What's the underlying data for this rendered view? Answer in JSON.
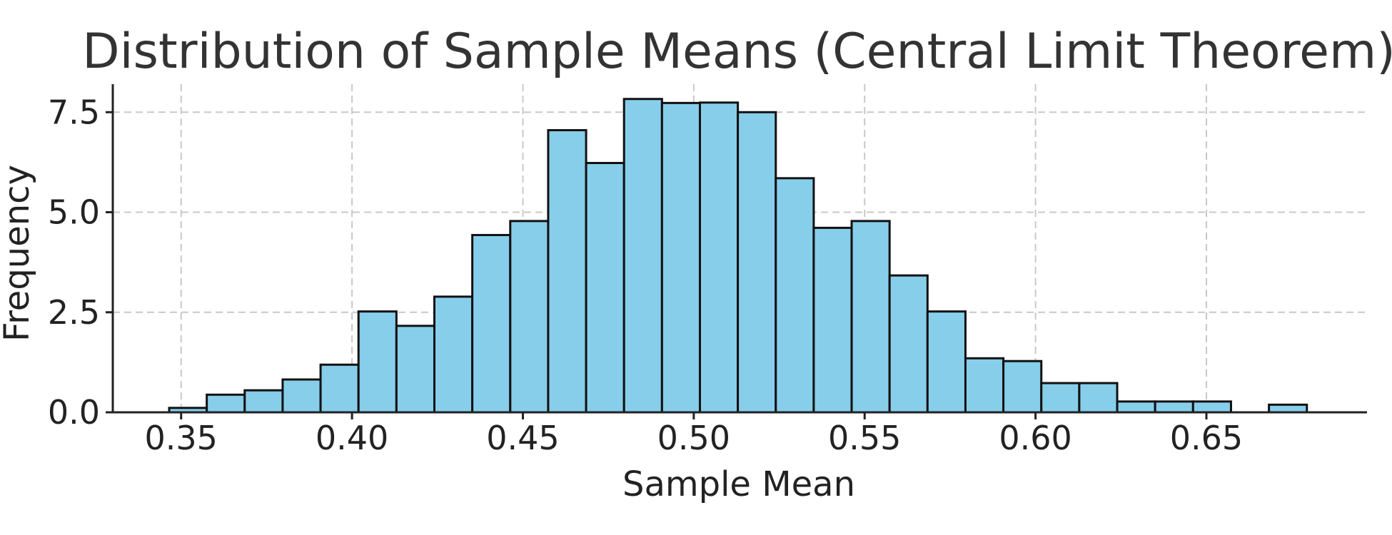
{
  "chart_data": {
    "type": "bar",
    "title": "Distribution of Sample Means (Central Limit Theorem)",
    "xlabel": "Sample Mean",
    "ylabel": "Frequency",
    "xlim": [
      0.33,
      0.697
    ],
    "ylim": [
      0,
      8.2
    ],
    "x_ticks": [
      0.35,
      0.4,
      0.45,
      0.5,
      0.55,
      0.6,
      0.65
    ],
    "x_tick_labels": [
      "0.35",
      "0.40",
      "0.45",
      "0.50",
      "0.55",
      "0.60",
      "0.65"
    ],
    "y_ticks": [
      0,
      2.5,
      5.0,
      7.5
    ],
    "y_tick_labels": [
      "0.0",
      "2.5",
      "5.0",
      "7.5"
    ],
    "grid": true,
    "bar_color": "#87ceeb",
    "edge_color": "#111111",
    "bins": [
      {
        "x0": 0.3465,
        "x1": 0.3575,
        "value": 0.11
      },
      {
        "x0": 0.3575,
        "x1": 0.3686,
        "value": 0.44
      },
      {
        "x0": 0.3686,
        "x1": 0.3797,
        "value": 0.55
      },
      {
        "x0": 0.3797,
        "x1": 0.3908,
        "value": 0.82
      },
      {
        "x0": 0.3908,
        "x1": 0.4019,
        "value": 1.19
      },
      {
        "x0": 0.4019,
        "x1": 0.413,
        "value": 2.52
      },
      {
        "x0": 0.413,
        "x1": 0.4241,
        "value": 2.16
      },
      {
        "x0": 0.4241,
        "x1": 0.4352,
        "value": 2.89
      },
      {
        "x0": 0.4352,
        "x1": 0.4463,
        "value": 4.43
      },
      {
        "x0": 0.4463,
        "x1": 0.4574,
        "value": 4.78
      },
      {
        "x0": 0.4574,
        "x1": 0.4685,
        "value": 7.05
      },
      {
        "x0": 0.4685,
        "x1": 0.4796,
        "value": 6.23
      },
      {
        "x0": 0.4796,
        "x1": 0.4907,
        "value": 7.83
      },
      {
        "x0": 0.4907,
        "x1": 0.5018,
        "value": 7.73
      },
      {
        "x0": 0.5018,
        "x1": 0.5129,
        "value": 7.74
      },
      {
        "x0": 0.5129,
        "x1": 0.524,
        "value": 7.5
      },
      {
        "x0": 0.524,
        "x1": 0.5351,
        "value": 5.85
      },
      {
        "x0": 0.5351,
        "x1": 0.5462,
        "value": 4.61
      },
      {
        "x0": 0.5462,
        "x1": 0.5573,
        "value": 4.78
      },
      {
        "x0": 0.5573,
        "x1": 0.5684,
        "value": 3.42
      },
      {
        "x0": 0.5684,
        "x1": 0.5795,
        "value": 2.52
      },
      {
        "x0": 0.5795,
        "x1": 0.5906,
        "value": 1.35
      },
      {
        "x0": 0.5906,
        "x1": 0.6017,
        "value": 1.28
      },
      {
        "x0": 0.6017,
        "x1": 0.6128,
        "value": 0.73
      },
      {
        "x0": 0.6128,
        "x1": 0.6239,
        "value": 0.73
      },
      {
        "x0": 0.6239,
        "x1": 0.635,
        "value": 0.27
      },
      {
        "x0": 0.635,
        "x1": 0.6461,
        "value": 0.27
      },
      {
        "x0": 0.6461,
        "x1": 0.6572,
        "value": 0.27
      },
      {
        "x0": 0.6572,
        "x1": 0.6683,
        "value": 0.0
      },
      {
        "x0": 0.6683,
        "x1": 0.6794,
        "value": 0.19
      }
    ]
  }
}
